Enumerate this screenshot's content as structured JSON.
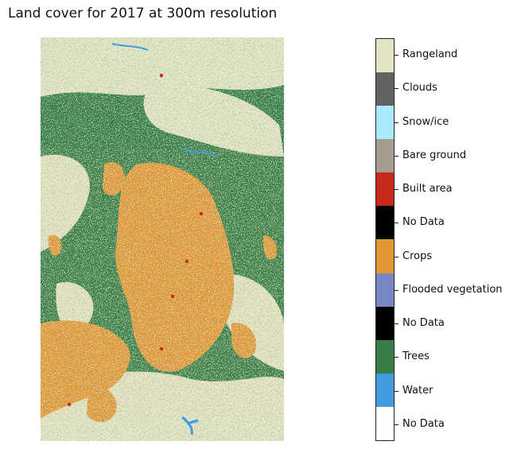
{
  "map": {
    "title": "Land cover for 2017 at 300m resolution"
  },
  "legend": {
    "classes": [
      {
        "label": "Rangeland",
        "color": "#e3e2c2"
      },
      {
        "label": "Clouds",
        "color": "#626262"
      },
      {
        "label": "Snow/ice",
        "color": "#a8ebff"
      },
      {
        "label": "Bare ground",
        "color": "#a59b8f"
      },
      {
        "label": "Built area",
        "color": "#c6281c"
      },
      {
        "label": "No Data",
        "color": "#000000"
      },
      {
        "label": "Crops",
        "color": "#e49635"
      },
      {
        "label": "Flooded vegetation",
        "color": "#7a87c6"
      },
      {
        "label": "No Data",
        "color": "#000000"
      },
      {
        "label": "Trees",
        "color": "#397d49"
      },
      {
        "label": "Water",
        "color": "#419bdf"
      },
      {
        "label": "No Data",
        "color": "#ffffff"
      }
    ]
  },
  "raster_colors": {
    "trees": "#397d49",
    "crops": "#e49635",
    "rangeland": "#e3e2c2",
    "water": "#419bdf",
    "built": "#c6281c"
  }
}
